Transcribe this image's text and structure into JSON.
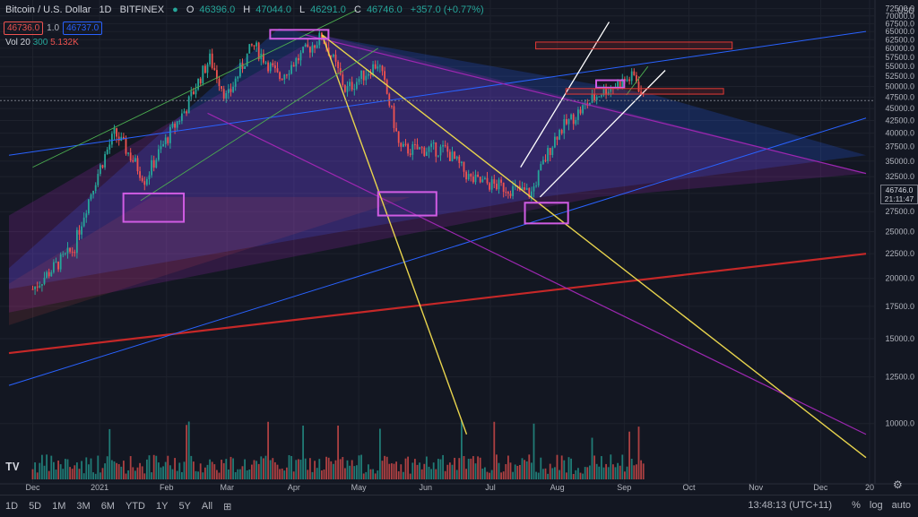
{
  "header": {
    "symbol": "Bitcoin / U.S. Dollar",
    "interval": "1D",
    "exchange": "BITFINEX",
    "ohlc": {
      "o_label": "O",
      "o": "46396.0",
      "h_label": "H",
      "h": "47044.0",
      "l_label": "L",
      "l": "46291.0",
      "c_label": "C",
      "c": "46746.0",
      "chg": "+357.0 (+0.77%)"
    },
    "bid": "46736.0",
    "spread": "1.0",
    "ask": "46737.0"
  },
  "volume": {
    "label": "Vol 20",
    "v1": "300",
    "v2": "5.132K"
  },
  "currency": "USD",
  "current_price": "46746.0",
  "countdown": "21:11:47",
  "time_axis": [
    "Dec",
    "2021",
    "Feb",
    "Mar",
    "Apr",
    "May",
    "Jun",
    "Jul",
    "Aug",
    "Sep",
    "Oct",
    "Nov",
    "Dec",
    "20"
  ],
  "timeframes": [
    "1D",
    "5D",
    "1M",
    "3M",
    "6M",
    "YTD",
    "1Y",
    "5Y",
    "All"
  ],
  "clock": "13:48:13 (UTC+11)",
  "options": {
    "percent": "%",
    "log": "log",
    "auto": "auto"
  },
  "chart_data": {
    "type": "candlestick",
    "symbol": "Bitcoin / U.S. Dollar",
    "interval": "1D",
    "yticks": [
      10000,
      12500,
      15000,
      17500,
      20000,
      22500,
      25000,
      27500,
      30000,
      32500,
      35000,
      37500,
      40000,
      42500,
      45000,
      47500,
      50000,
      52500,
      55000,
      57500,
      60000,
      62500,
      65000,
      67500,
      70000,
      72500
    ],
    "ylim": [
      7500,
      73000
    ],
    "xlabels": [
      "Dec",
      "2021",
      "Feb",
      "Mar",
      "Apr",
      "May",
      "Jun",
      "Jul",
      "Aug",
      "Sep",
      "Oct",
      "Nov",
      "Dec",
      "20"
    ],
    "close_approx": [
      {
        "date": "2020-12-01",
        "value": 19000
      },
      {
        "date": "2020-12-20",
        "value": 23000
      },
      {
        "date": "2021-01-08",
        "value": 40000
      },
      {
        "date": "2021-01-22",
        "value": 32000
      },
      {
        "date": "2021-02-10",
        "value": 45000
      },
      {
        "date": "2021-02-21",
        "value": 57000
      },
      {
        "date": "2021-03-01",
        "value": 47000
      },
      {
        "date": "2021-03-13",
        "value": 61000
      },
      {
        "date": "2021-03-25",
        "value": 52000
      },
      {
        "date": "2021-04-14",
        "value": 63500
      },
      {
        "date": "2021-04-25",
        "value": 49000
      },
      {
        "date": "2021-05-10",
        "value": 56000
      },
      {
        "date": "2021-05-20",
        "value": 37000
      },
      {
        "date": "2021-06-10",
        "value": 37000
      },
      {
        "date": "2021-06-22",
        "value": 32000
      },
      {
        "date": "2021-07-20",
        "value": 30000
      },
      {
        "date": "2021-08-01",
        "value": 40000
      },
      {
        "date": "2021-08-22",
        "value": 49000
      },
      {
        "date": "2021-09-06",
        "value": 52500
      },
      {
        "date": "2021-09-10",
        "value": 46746
      }
    ],
    "last": 46746.0
  },
  "colors": {
    "up": "#26a69a",
    "down": "#ef5350",
    "bg": "#131722",
    "grid": "#1e222d",
    "yellow": "#e8d44d",
    "purple": "#9c27b0",
    "magenta": "#d05ce3",
    "blue": "#2962ff",
    "red": "#c62828",
    "green": "#4caf50",
    "white": "#ffffff"
  }
}
